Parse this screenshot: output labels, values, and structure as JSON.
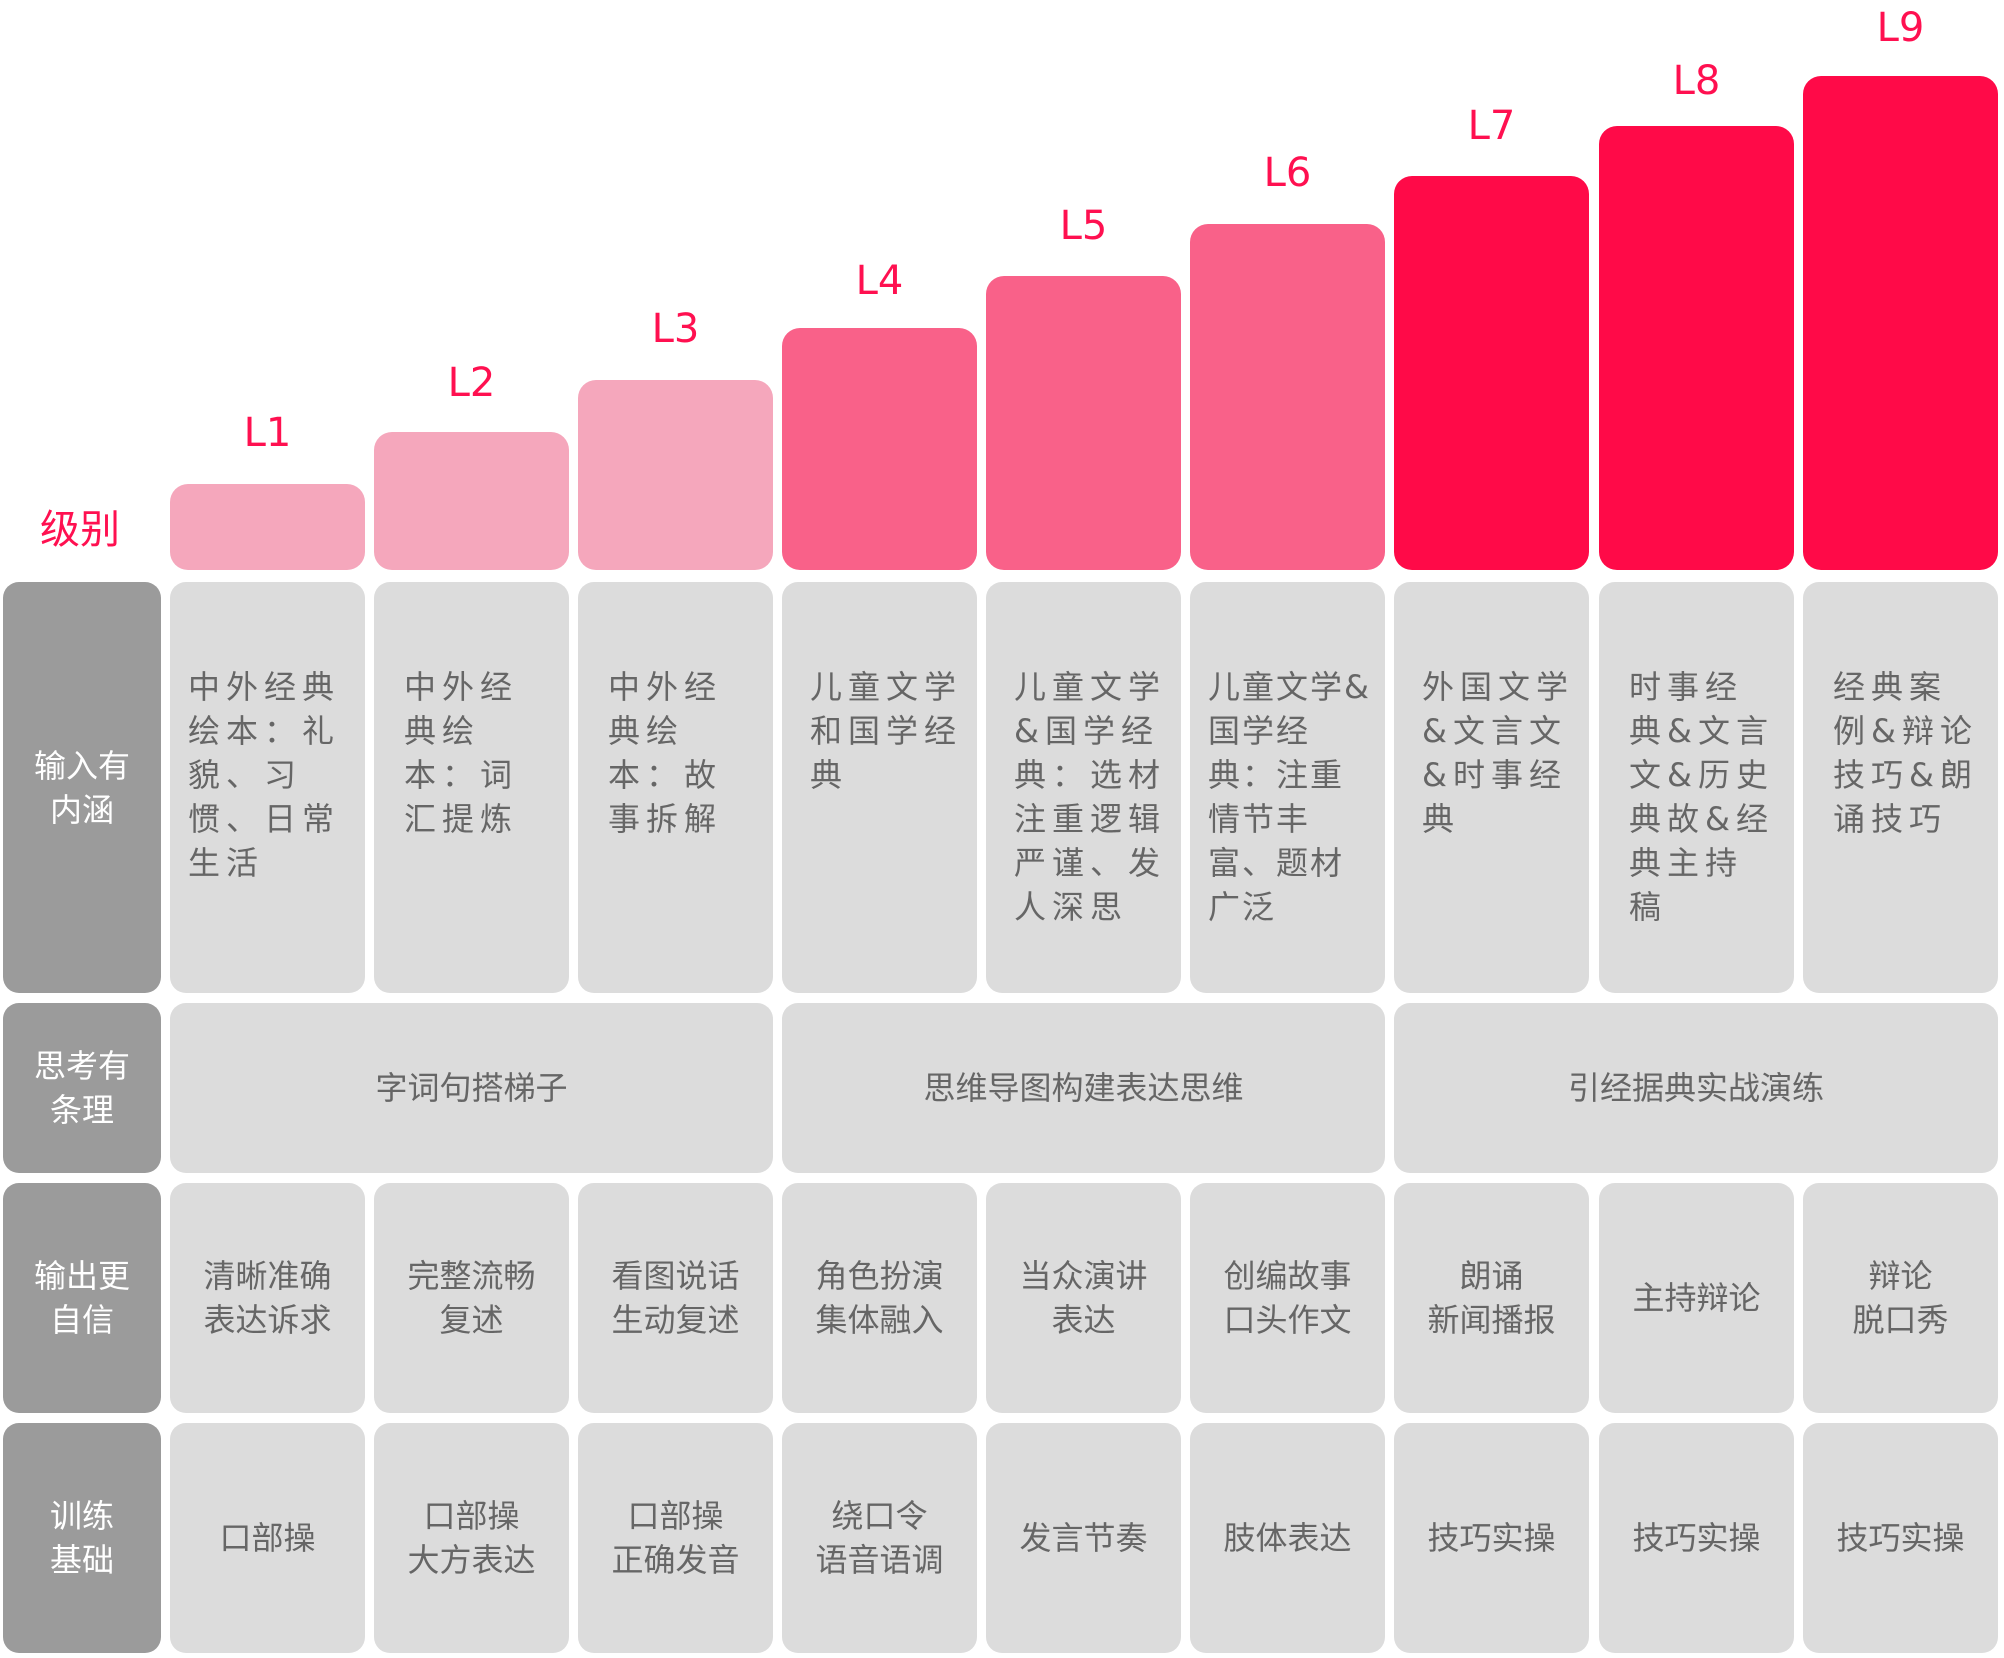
{
  "header_label": "级别",
  "levels": [
    "L1",
    "L2",
    "L3",
    "L4",
    "L5",
    "L6",
    "L7",
    "L8",
    "L9"
  ],
  "colors": {
    "light": "#f5a7bc",
    "mid": "#f96189",
    "strong": "#ff0a48",
    "cell": "#dcdcdc",
    "rowhead": "#9b9b9b",
    "label": "#ff1050"
  },
  "rows": {
    "input": {
      "label": "输入有\n内涵",
      "cells": [
        "中外经典绘本：礼貌、习惯、日常生活",
        "中外经典绘本：词汇提炼",
        "中外经典绘本：故事拆解",
        "儿童文学和国学经典",
        "儿童文学&国学经典：选材注重逻辑严谨、发人深思",
        "儿童文学&国学经典：注重情节丰富、题材广泛",
        "外国文学&文言文&时事经典",
        "时事经典&文言文&历史典故&经典主持稿",
        "经典案例&辩论技巧&朗诵技巧"
      ]
    },
    "thinking": {
      "label": "思考有\n条理",
      "cells": [
        "字词句搭梯子",
        "思维导图构建表达思维",
        "引经据典实战演练"
      ]
    },
    "output": {
      "label": "输出更\n自信",
      "cells": [
        "清晰准确\n表达诉求",
        "完整流畅\n复述",
        "看图说话\n生动复述",
        "角色扮演\n集体融入",
        "当众演讲\n表达",
        "创编故事\n口头作文",
        "朗诵\n新闻播报",
        "主持辩论",
        "辩论\n脱口秀"
      ]
    },
    "training": {
      "label": "训练\n基础",
      "cells": [
        "口部操",
        "口部操\n大方表达",
        "口部操\n正确发音",
        "绕口令\n语音语调",
        "发言节奏",
        "肢体表达",
        "技巧实操",
        "技巧实操",
        "技巧实操"
      ]
    }
  }
}
